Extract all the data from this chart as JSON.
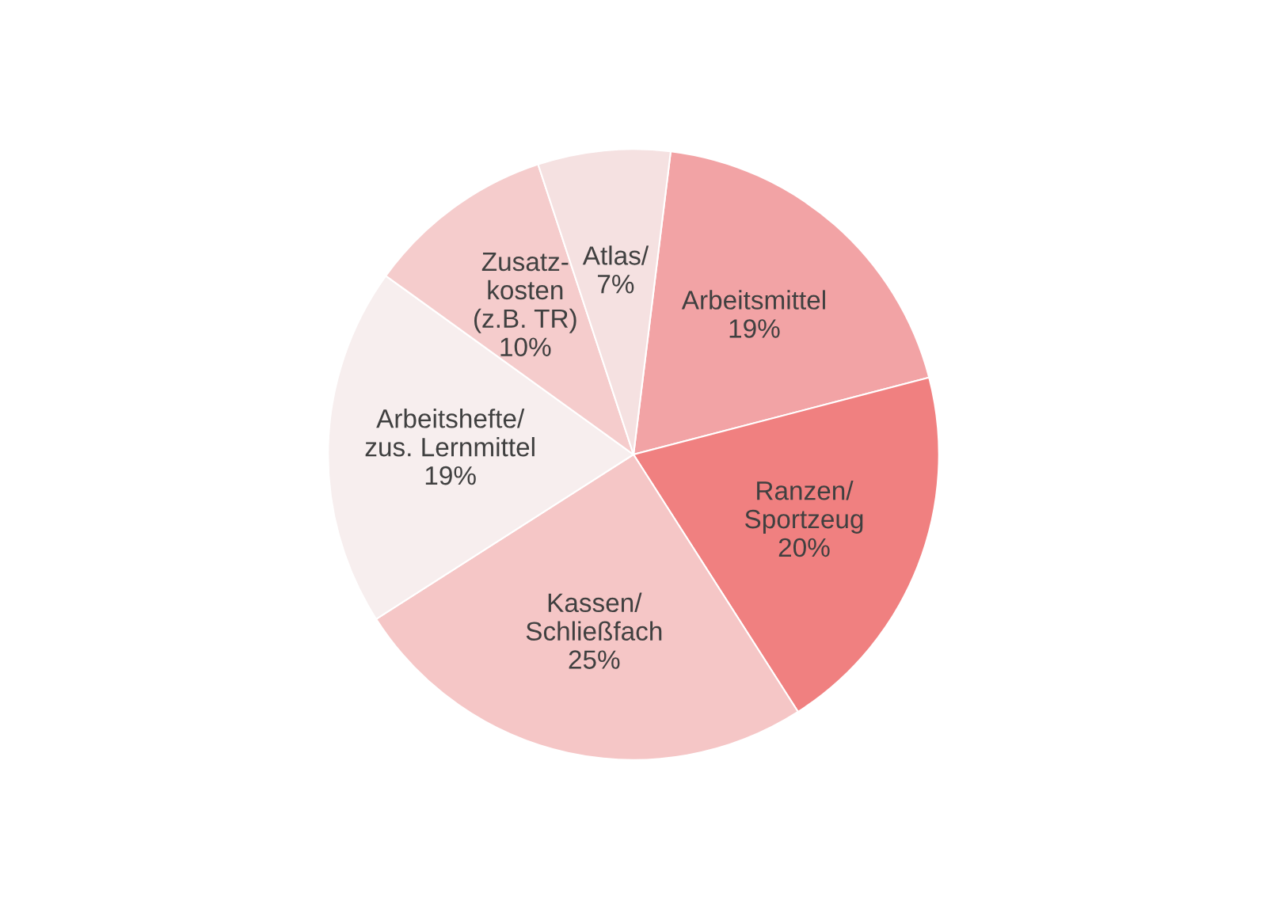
{
  "chart_data": {
    "type": "pie",
    "categories": [
      "Arbeitsmittel",
      "Ranzen/\nSportzeug",
      "Kassen/\nSchließfach",
      "Arbeitshefte/\nzus. Lernmittel",
      "Zusatz-\nkosten\n(z.B. TR)",
      "Atlas/"
    ],
    "values": [
      19,
      20,
      25,
      19,
      10,
      7
    ],
    "value_labels": [
      "19%",
      "20%",
      "25%",
      "19%",
      "10%",
      "7%"
    ],
    "colors": [
      "#f2a3a5",
      "#f08080",
      "#f5c6c6",
      "#f7eeee",
      "#f5cccc",
      "#f5e1e1"
    ]
  }
}
